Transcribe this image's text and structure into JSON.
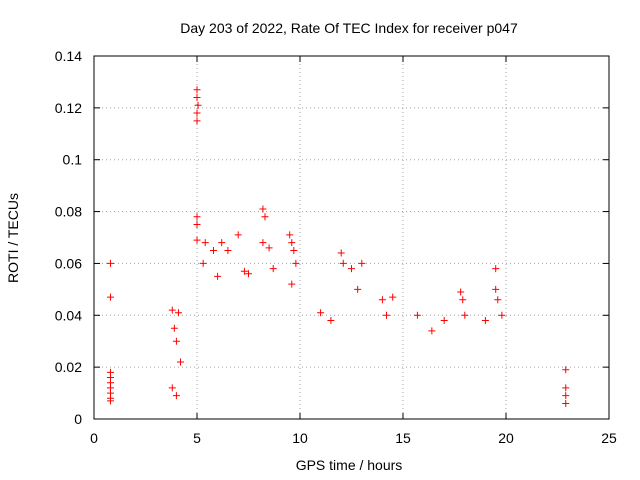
{
  "chart_data": {
    "type": "scatter",
    "title": "Day 203 of 2022, Rate Of TEC Index for receiver p047",
    "xlabel": "GPS time / hours",
    "ylabel": "ROTI / TECUs",
    "xlim": [
      0,
      25
    ],
    "ylim": [
      0,
      0.14
    ],
    "xticks": [
      0,
      5,
      10,
      15,
      20,
      25
    ],
    "yticks": [
      0,
      0.02,
      0.04,
      0.06,
      0.08,
      0.1,
      0.12,
      0.14
    ],
    "xtick_labels": [
      "0",
      "5",
      "10",
      "15",
      "20",
      "25"
    ],
    "ytick_labels": [
      "0",
      "0.02",
      "0.04",
      "0.06",
      "0.08",
      "0.1",
      "0.12",
      "0.14"
    ],
    "grid": true,
    "marker": "+",
    "color": "#ff0000",
    "series": [
      {
        "points": [
          [
            0.8,
            0.06
          ],
          [
            0.8,
            0.047
          ],
          [
            0.8,
            0.018
          ],
          [
            0.8,
            0.016
          ],
          [
            0.8,
            0.014
          ],
          [
            0.8,
            0.012
          ],
          [
            0.8,
            0.01
          ],
          [
            0.8,
            0.008
          ],
          [
            0.8,
            0.007
          ],
          [
            3.8,
            0.042
          ],
          [
            3.9,
            0.035
          ],
          [
            4.0,
            0.03
          ],
          [
            4.1,
            0.041
          ],
          [
            4.2,
            0.022
          ],
          [
            3.8,
            0.012
          ],
          [
            4.0,
            0.009
          ],
          [
            5.0,
            0.127
          ],
          [
            5.0,
            0.124
          ],
          [
            5.05,
            0.121
          ],
          [
            5.0,
            0.118
          ],
          [
            5.0,
            0.115
          ],
          [
            5.0,
            0.078
          ],
          [
            5.0,
            0.075
          ],
          [
            5.0,
            0.069
          ],
          [
            5.4,
            0.068
          ],
          [
            5.8,
            0.065
          ],
          [
            6.2,
            0.068
          ],
          [
            5.3,
            0.06
          ],
          [
            6.0,
            0.055
          ],
          [
            6.5,
            0.065
          ],
          [
            7.0,
            0.071
          ],
          [
            7.3,
            0.057
          ],
          [
            7.5,
            0.056
          ],
          [
            8.2,
            0.081
          ],
          [
            8.3,
            0.078
          ],
          [
            8.2,
            0.068
          ],
          [
            8.5,
            0.066
          ],
          [
            8.7,
            0.058
          ],
          [
            9.5,
            0.071
          ],
          [
            9.6,
            0.068
          ],
          [
            9.7,
            0.065
          ],
          [
            9.8,
            0.06
          ],
          [
            9.6,
            0.052
          ],
          [
            11.0,
            0.041
          ],
          [
            11.5,
            0.038
          ],
          [
            12.0,
            0.064
          ],
          [
            12.1,
            0.06
          ],
          [
            12.5,
            0.058
          ],
          [
            13.0,
            0.06
          ],
          [
            12.8,
            0.05
          ],
          [
            14.0,
            0.046
          ],
          [
            14.5,
            0.047
          ],
          [
            14.2,
            0.04
          ],
          [
            15.7,
            0.04
          ],
          [
            16.4,
            0.034
          ],
          [
            17.0,
            0.038
          ],
          [
            17.8,
            0.049
          ],
          [
            17.9,
            0.046
          ],
          [
            18.0,
            0.04
          ],
          [
            19.0,
            0.038
          ],
          [
            19.5,
            0.058
          ],
          [
            19.5,
            0.05
          ],
          [
            19.6,
            0.046
          ],
          [
            19.8,
            0.04
          ],
          [
            22.9,
            0.019
          ],
          [
            22.9,
            0.012
          ],
          [
            22.9,
            0.009
          ],
          [
            22.9,
            0.006
          ]
        ]
      }
    ]
  }
}
